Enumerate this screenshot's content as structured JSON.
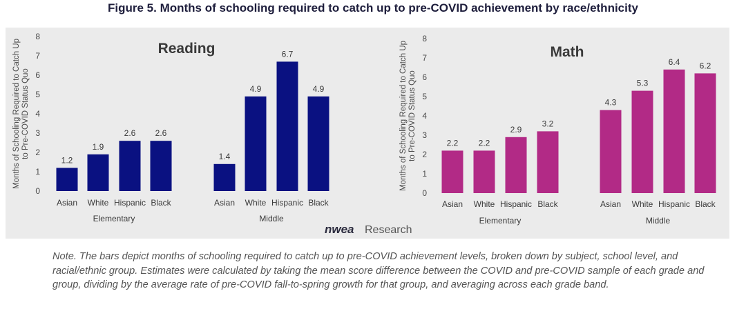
{
  "figure_title": "Figure 5. Months of schooling required to catch up to pre-COVID achievement by race/ethnicity",
  "brand": {
    "logo": "nwea",
    "text": "Research"
  },
  "note": "Note. The bars depict months of schooling required to catch up to pre-COVID achievement levels, broken down by subject, school level, and racial/ethnic group. Estimates were calculated by taking the mean score difference between the COVID and pre-COVID sample of each grade and group, dividing by the average rate of pre-COVID fall-to-spring growth for that group, and averaging across each grade band.",
  "colors": {
    "reading": "#0a1181",
    "math": "#b22a86",
    "panel": "#ebebeb"
  },
  "chart_data": [
    {
      "type": "bar",
      "title": "Reading",
      "ylabel": "Months of Schooling Required to Catch Up to Pre-COVID Status Quo",
      "ylim": [
        0,
        8
      ],
      "yticks": [
        0,
        1,
        2,
        3,
        4,
        5,
        6,
        7,
        8
      ],
      "groups": [
        {
          "label": "Elementary",
          "categories": [
            "Asian",
            "White",
            "Hispanic",
            "Black"
          ],
          "values": [
            1.2,
            1.9,
            2.6,
            2.6
          ]
        },
        {
          "label": "Middle",
          "categories": [
            "Asian",
            "White",
            "Hispanic",
            "Black"
          ],
          "values": [
            1.4,
            4.9,
            6.7,
            4.9
          ]
        }
      ]
    },
    {
      "type": "bar",
      "title": "Math",
      "ylabel": "Months of Schooling Required to Catch Up to Pre-COVID Status Quo",
      "ylim": [
        0,
        8
      ],
      "yticks": [
        0,
        1,
        2,
        3,
        4,
        5,
        6,
        7,
        8
      ],
      "groups": [
        {
          "label": "Elementary",
          "categories": [
            "Asian",
            "White",
            "Hispanic",
            "Black"
          ],
          "values": [
            2.2,
            2.2,
            2.9,
            3.2
          ]
        },
        {
          "label": "Middle",
          "categories": [
            "Asian",
            "White",
            "Hispanic",
            "Black"
          ],
          "values": [
            4.3,
            5.3,
            6.4,
            6.2
          ]
        }
      ]
    }
  ]
}
